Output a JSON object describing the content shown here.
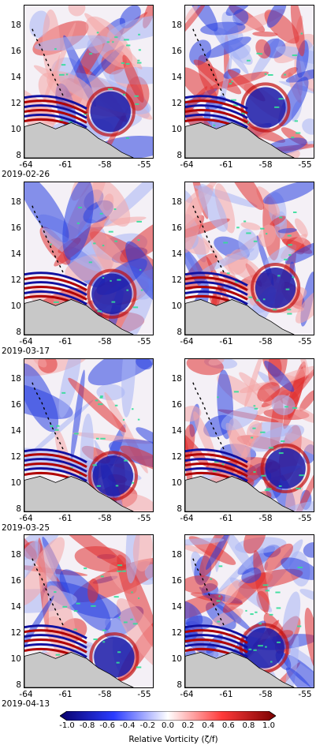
{
  "y_tick_labels": [
    "18",
    "16",
    "14",
    "12",
    "10",
    "8"
  ],
  "x_tick_labels": [
    "-64",
    "-61",
    "-58",
    "-55"
  ],
  "rows": [
    {
      "date": "2019-02-26"
    },
    {
      "date": "2019-03-17"
    },
    {
      "date": "2019-03-25"
    },
    {
      "date": "2019-04-13"
    }
  ],
  "colorbar": {
    "ticks": [
      "-1.0",
      "-0.8",
      "-0.6",
      "-0.4",
      "-0.2",
      "0.0",
      "0.2",
      "0.4",
      "0.6",
      "0.8",
      "1.0"
    ],
    "label": "Relative Vorticity (ζ/f)",
    "colors": {
      "negative": "#08006b",
      "zero": "#ffffff",
      "positive": "#7a0000"
    }
  },
  "colors": {
    "land": "#c8c8c8",
    "chlorophyll": "#33dd99",
    "coast": "#000000"
  }
}
